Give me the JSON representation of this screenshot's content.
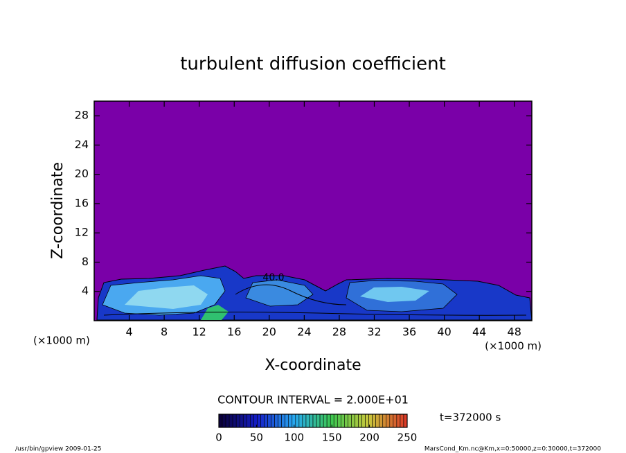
{
  "chart_data": {
    "type": "contour",
    "title": "turbulent diffusion coefficient",
    "x_label": "X-coordinate",
    "y_label": "Z-coordinate",
    "x_unit": "(×1000 m)",
    "xlim": [
      0,
      50
    ],
    "ylim": [
      0,
      30
    ],
    "xticks": [
      4,
      8,
      12,
      16,
      20,
      24,
      28,
      32,
      36,
      40,
      44,
      48
    ],
    "yticks": [
      4,
      8,
      12,
      16,
      20,
      24,
      28
    ],
    "contour_label": "40.0",
    "contour_interval": "CONTOUR INTERVAL = 2.000E+01",
    "time": "t=372000 s",
    "colorbar": {
      "lim": [
        0,
        250
      ],
      "ticks": [
        0,
        50,
        100,
        150,
        200,
        250
      ]
    },
    "footer_left": "/usr/bin/gpview  2009-01-25",
    "footer_right": "MarsCond_Km.nc@Km,x=0:50000,z=0:30000,t=372000"
  }
}
